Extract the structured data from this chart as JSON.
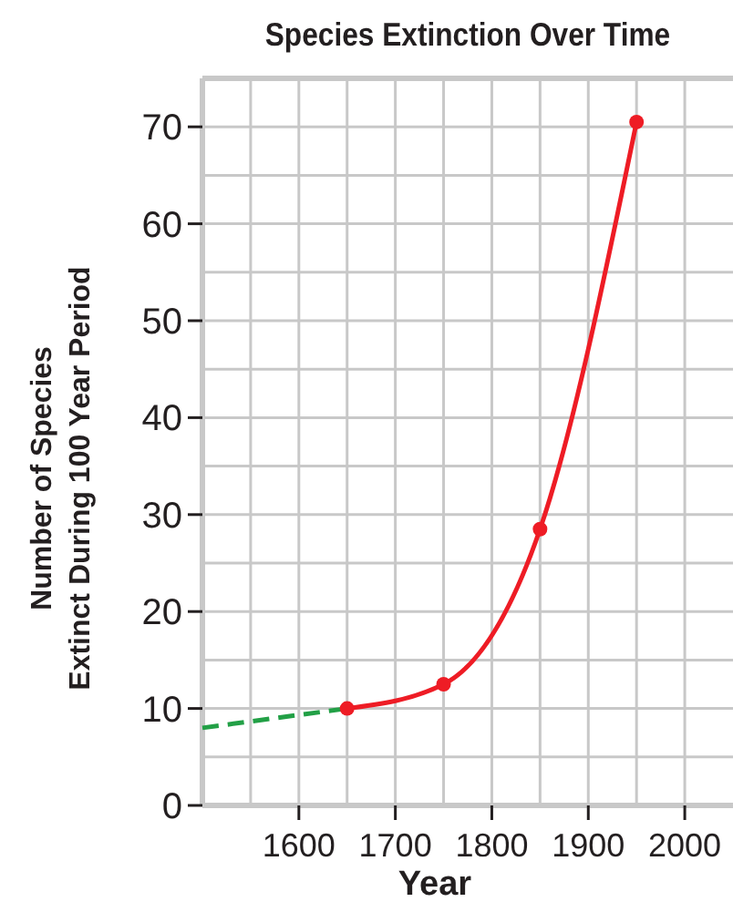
{
  "chart_data": {
    "type": "line",
    "title": "Species Extinction Over Time",
    "xlabel": "Year",
    "ylabel": "Number of Species\nExtinct During 100 Year Period",
    "xlim": [
      1500,
      2050
    ],
    "xticks": [
      {
        "value": 1550,
        "label": null
      },
      1600,
      {
        "value": 1650,
        "label": null
      },
      1700,
      {
        "value": 1750,
        "label": null
      },
      1800,
      {
        "value": 1850,
        "label": null
      },
      1900,
      {
        "value": 1950,
        "label": null
      },
      2000
    ],
    "ylim": [
      0,
      75
    ],
    "yticks": [
      0,
      {
        "value": 5,
        "label": null
      },
      10,
      {
        "value": 15,
        "label": null
      },
      20,
      {
        "value": 25,
        "label": null
      },
      30,
      {
        "value": 35,
        "label": null
      },
      40,
      {
        "value": 45,
        "label": null
      },
      50,
      {
        "value": 55,
        "label": null
      },
      60,
      {
        "value": 65,
        "label": null
      },
      70
    ],
    "grid": true,
    "series": [
      {
        "color": "#22a046",
        "x": [
          1500,
          1650
        ],
        "values": [
          8,
          10
        ],
        "line_style": "dashed",
        "marker": "none"
      },
      {
        "color": "#ee1c25",
        "x": [
          1650,
          1750,
          1850,
          1950
        ],
        "values": [
          10,
          12.5,
          28.5,
          70.5
        ],
        "line_style": "solid",
        "marker": "circle"
      }
    ]
  }
}
